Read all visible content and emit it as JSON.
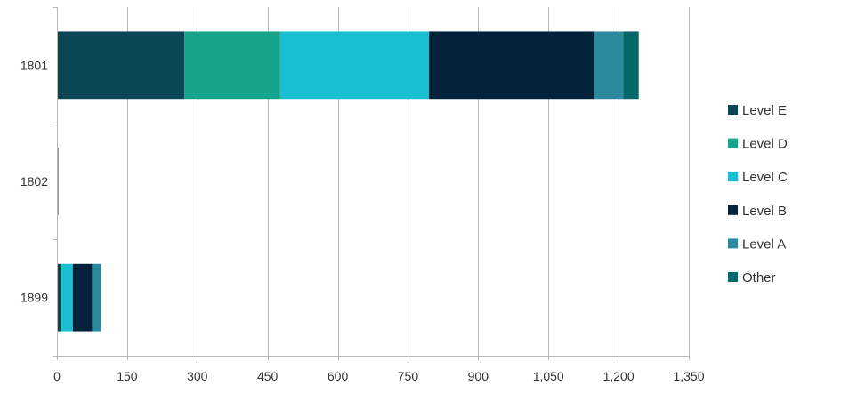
{
  "chart_data": {
    "type": "bar",
    "orientation": "horizontal",
    "stacked": true,
    "categories": [
      "1801",
      "1802",
      "1899"
    ],
    "series": [
      {
        "name": "Level E",
        "color": "#0b4657",
        "values": [
          272,
          0,
          8
        ]
      },
      {
        "name": "Level D",
        "color": "#16a58a",
        "values": [
          205,
          0,
          2
        ]
      },
      {
        "name": "Level C",
        "color": "#19bfd1",
        "values": [
          318,
          0,
          24
        ]
      },
      {
        "name": "Level B",
        "color": "#02233b",
        "values": [
          352,
          0,
          41
        ]
      },
      {
        "name": "Level A",
        "color": "#2d8a9e",
        "values": [
          63,
          0,
          19
        ]
      },
      {
        "name": "Other",
        "color": "#00686a",
        "values": [
          33,
          3,
          0
        ]
      }
    ],
    "xlim": [
      0,
      1350
    ],
    "xticks": [
      "0",
      "150",
      "300",
      "450",
      "600",
      "750",
      "900",
      "1,050",
      "1,200",
      "1,350"
    ],
    "xtick_values": [
      0,
      150,
      300,
      450,
      600,
      750,
      900,
      1050,
      1200,
      1350
    ],
    "grid": "vertical",
    "legend": "right"
  }
}
